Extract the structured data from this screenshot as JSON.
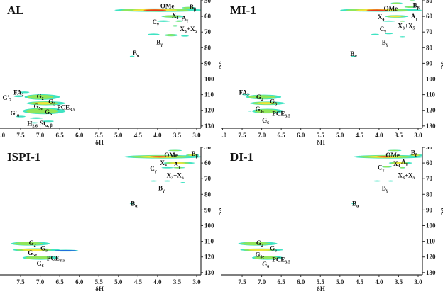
{
  "colors": {
    "level1": "#3fe3c2",
    "level2": "#90e65a",
    "level3": "#f1e43a",
    "level4": "#e43a1c",
    "negative": "#1d5fe0",
    "axis": "#333333"
  },
  "chart_data": [
    {
      "type": "heatmap",
      "title": "AL",
      "xlabel": "δH",
      "ylabel": "δC",
      "xlim": [
        8.0,
        3.0
      ],
      "ylim": [
        50,
        130
      ],
      "xticks": [
        "8.0",
        "7.5",
        "7.0",
        "6.5",
        "6.0",
        "5.5",
        "5.0",
        "4.5",
        "4.0",
        "3.5",
        "3.0"
      ],
      "yticks": [
        "50",
        "60",
        "70",
        "80",
        "90",
        "100",
        "110",
        "120",
        "130"
      ],
      "peaks": [
        {
          "h": 3.95,
          "c": 56,
          "w": 2.3,
          "hc": 2.2,
          "level": 4
        },
        {
          "h": 3.2,
          "c": 54.5,
          "w": 0.35,
          "hc": 1.2,
          "level": 2
        },
        {
          "h": 3.6,
          "c": 60,
          "w": 0.6,
          "hc": 1.6,
          "level": 2
        },
        {
          "h": 3.85,
          "c": 63,
          "w": 0.35,
          "hc": 1,
          "level": 1
        },
        {
          "h": 3.45,
          "c": 63,
          "w": 0.2,
          "hc": 1,
          "level": 2
        },
        {
          "h": 3.55,
          "c": 66,
          "w": 0.15,
          "hc": 1,
          "level": 2
        },
        {
          "h": 4.1,
          "c": 71.5,
          "w": 0.3,
          "hc": 1,
          "level": 1
        },
        {
          "h": 3.65,
          "c": 72,
          "w": 0.35,
          "hc": 1.5,
          "level": 2
        },
        {
          "h": 3.3,
          "c": 72.5,
          "w": 0.2,
          "hc": 0.8,
          "level": 1
        },
        {
          "h": 4.65,
          "c": 85.5,
          "w": 0.12,
          "hc": 0.8,
          "level": 1
        },
        {
          "h": 7.4,
          "c": 108.5,
          "w": 0.25,
          "hc": 1,
          "level": 1
        },
        {
          "h": 7.55,
          "c": 111,
          "w": 0.25,
          "hc": 1.2,
          "level": 1
        },
        {
          "h": 6.95,
          "c": 111.5,
          "w": 0.9,
          "hc": 3.5,
          "level": 2
        },
        {
          "h": 6.85,
          "c": 115.5,
          "w": 1.0,
          "hc": 2.5,
          "level": 3
        },
        {
          "h": 6.9,
          "c": 120.5,
          "w": 1.1,
          "hc": 4,
          "level": 2
        },
        {
          "h": 7.5,
          "c": 124,
          "w": 0.25,
          "hc": 1,
          "level": 1
        },
        {
          "h": 7.1,
          "c": 125,
          "w": 0.35,
          "hc": 1,
          "level": 1
        },
        {
          "h": 6.8,
          "c": 127,
          "w": 0.3,
          "hc": 1,
          "level": 1
        },
        {
          "h": 7.15,
          "c": 128,
          "w": 0.2,
          "hc": 0.8,
          "level": 1
        }
      ],
      "labels": [
        {
          "m": "OMe",
          "s": "",
          "h": 3.75,
          "c": 53.5
        },
        {
          "m": "B",
          "s": "β",
          "h": 3.1,
          "c": 54
        },
        {
          "m": "X",
          "s": "4",
          "h": 3.55,
          "c": 59.5
        },
        {
          "m": "A",
          "s": "γ",
          "h": 3.3,
          "c": 61
        },
        {
          "m": "C",
          "s": "γ",
          "h": 4.05,
          "c": 63.5
        },
        {
          "m": "X",
          "s": "3",
          "m2": "+X",
          "s2": "5",
          "h": 3.1,
          "c": 64.5
        },
        {
          "m": "B",
          "s": "γ",
          "h": 3.95,
          "c": 76.5
        },
        {
          "m": "B",
          "s": "α",
          "h": 4.55,
          "c": 83.5
        },
        {
          "m": "FA",
          "s": "2",
          "h": 7.55,
          "c": 108.5
        },
        {
          "m": "G'",
          "s": "2",
          "h": 7.85,
          "c": 112
        },
        {
          "m": "G",
          "s": "2",
          "h": 7.0,
          "c": 111
        },
        {
          "m": "G",
          "s": "5e",
          "h": 7.05,
          "c": 115.5
        },
        {
          "m": "G",
          "s": "5",
          "h": 6.7,
          "c": 114.5
        },
        {
          "m": "PCE",
          "s": "3,5",
          "h": 6.45,
          "c": 118
        },
        {
          "m": "G'",
          "s": "6",
          "h": 7.65,
          "c": 122
        },
        {
          "m": "G",
          "s": "6",
          "h": 6.9,
          "c": 121
        },
        {
          "m": "H",
          "s": "2,6",
          "h": 7.2,
          "c": 128.5
        },
        {
          "m": "St",
          "s": "α, β",
          "h": 6.85,
          "c": 126.5
        }
      ]
    },
    {
      "type": "heatmap",
      "title": "MI-1",
      "xlabel": "δH",
      "ylabel": "δC",
      "xlim": [
        8.0,
        3.0
      ],
      "ylim": [
        50,
        130
      ],
      "xticks": [
        "8.0",
        "7.5",
        "7.0",
        "6.5",
        "6.0",
        "5.5",
        "5.0",
        "4.5",
        "4.0",
        "3.5",
        "3.0"
      ],
      "yticks": [
        "50",
        "60",
        "70",
        "80",
        "90",
        "100",
        "110",
        "120",
        "130"
      ],
      "peaks": [
        {
          "h": 3.95,
          "c": 56,
          "w": 2.1,
          "hc": 2,
          "level": 4
        },
        {
          "h": 3.55,
          "c": 51.5,
          "w": 0.3,
          "hc": 0.8,
          "level": 2
        },
        {
          "h": 3.15,
          "c": 49.5,
          "w": 0.15,
          "hc": 0.8,
          "level": 2
        },
        {
          "h": 3.2,
          "c": 54,
          "w": 0.3,
          "hc": 1,
          "level": 2
        },
        {
          "h": 3.55,
          "c": 60,
          "w": 0.6,
          "hc": 1.6,
          "level": 3
        },
        {
          "h": 3.75,
          "c": 63,
          "w": 0.35,
          "hc": 0.8,
          "level": 1
        },
        {
          "h": 3.4,
          "c": 63,
          "w": 0.15,
          "hc": 0.8,
          "level": 3
        },
        {
          "h": 4.1,
          "c": 71.5,
          "w": 0.2,
          "hc": 0.8,
          "level": 1
        },
        {
          "h": 3.75,
          "c": 71,
          "w": 0.2,
          "hc": 0.8,
          "level": 1
        },
        {
          "h": 3.4,
          "c": 73,
          "w": 0.15,
          "hc": 0.6,
          "level": 1
        },
        {
          "h": 4.65,
          "c": 85.5,
          "w": 0.12,
          "hc": 0.8,
          "level": 1
        },
        {
          "h": 7.4,
          "c": 110,
          "w": 0.2,
          "hc": 0.8,
          "level": 1
        },
        {
          "h": 6.95,
          "c": 111.5,
          "w": 0.9,
          "hc": 3,
          "level": 2
        },
        {
          "h": 6.85,
          "c": 115.5,
          "w": 0.9,
          "hc": 2.2,
          "level": 3
        },
        {
          "h": 6.85,
          "c": 120.5,
          "w": 0.8,
          "hc": 3,
          "level": 2
        },
        {
          "h": 7.3,
          "c": 120.5,
          "w": 0.1,
          "hc": 0.6,
          "level": 1
        }
      ],
      "labels": [
        {
          "m": "OMe",
          "s": "",
          "h": 3.7,
          "c": 55
        },
        {
          "m": "B",
          "s": "β",
          "h": 3.05,
          "c": 53
        },
        {
          "m": "X",
          "s": "4",
          "h": 3.95,
          "c": 60.5
        },
        {
          "m": "A",
          "s": "γ",
          "h": 3.1,
          "c": 60
        },
        {
          "m": "C",
          "s": "γ",
          "h": 3.9,
          "c": 64.5
        },
        {
          "m": "X",
          "s": "3",
          "m2": "+X",
          "s2": "5",
          "h": 3.3,
          "c": 66
        },
        {
          "m": "B",
          "s": "γ",
          "h": 3.85,
          "c": 76.5
        },
        {
          "m": "B",
          "s": "α",
          "h": 4.65,
          "c": 84
        },
        {
          "m": "FA",
          "s": "2",
          "h": 7.45,
          "c": 108.5
        },
        {
          "m": "G",
          "s": "2",
          "h": 7.05,
          "c": 111.5
        },
        {
          "m": "G",
          "s": "5e",
          "h": 7.05,
          "c": 115.5
        },
        {
          "m": "G",
          "s": "5",
          "h": 6.7,
          "c": 114.5
        },
        {
          "m": "PCE",
          "s": "3,5",
          "h": 6.5,
          "c": 118.5
        },
        {
          "m": "G",
          "s": "6",
          "h": 6.9,
          "c": 121
        }
      ]
    },
    {
      "type": "heatmap",
      "title": "ISPI-1",
      "xlabel": "δH",
      "ylabel": "δC",
      "xlim": [
        8.0,
        3.0
      ],
      "ylim": [
        50,
        130
      ],
      "xticks": [
        "7.5",
        "7.0",
        "6.5",
        "6.0",
        "5.5",
        "5.0",
        "4.5",
        "4.0",
        "3.5",
        "3.0"
      ],
      "yticks": [
        "50",
        "60",
        "70",
        "80",
        "90",
        "100",
        "110",
        "120",
        "130"
      ],
      "peaks": [
        {
          "h": 3.85,
          "c": 56,
          "w": 2.0,
          "hc": 2.2,
          "level": 4
        },
        {
          "h": 3.55,
          "c": 52,
          "w": 0.35,
          "hc": 0.8,
          "level": 2
        },
        {
          "h": 3.1,
          "c": 55,
          "w": 0.35,
          "hc": 1.2,
          "level": 3
        },
        {
          "h": 3.45,
          "c": 60,
          "w": 0.8,
          "hc": 1.4,
          "level": 3
        },
        {
          "h": 3.75,
          "c": 63,
          "w": 0.3,
          "hc": 0.8,
          "level": 1
        },
        {
          "h": 3.45,
          "c": 63,
          "w": 0.3,
          "hc": 0.8,
          "level": 2
        },
        {
          "h": 4.1,
          "c": 71.5,
          "w": 0.2,
          "hc": 0.8,
          "level": 1
        },
        {
          "h": 3.75,
          "c": 71.5,
          "w": 0.2,
          "hc": 0.8,
          "level": 1
        },
        {
          "h": 3.35,
          "c": 72.5,
          "w": 0.12,
          "hc": 0.6,
          "level": 1
        },
        {
          "h": 4.65,
          "c": 86,
          "w": 0.12,
          "hc": 0.8,
          "level": 1
        },
        {
          "h": 7.25,
          "c": 111.5,
          "w": 1.0,
          "hc": 2.5,
          "level": 2
        },
        {
          "h": 7.1,
          "c": 115.5,
          "w": 1.2,
          "hc": 2,
          "level": 3
        },
        {
          "h": 6.35,
          "c": 116,
          "w": 0.65,
          "hc": 1.2,
          "level": -1
        },
        {
          "h": 7.0,
          "c": 120.5,
          "w": 0.9,
          "hc": 2.5,
          "level": 2
        }
      ],
      "labels": [
        {
          "m": "OMe",
          "s": "",
          "h": 3.65,
          "c": 55
        },
        {
          "m": "B",
          "s": "β",
          "h": 3.05,
          "c": 54
        },
        {
          "m": "X",
          "s": "4",
          "h": 3.85,
          "c": 60
        },
        {
          "m": "A",
          "s": "γ",
          "h": 3.5,
          "c": 59
        },
        {
          "m": "C",
          "s": "γ",
          "h": 4.0,
          "c": 63.5
        },
        {
          "m": "X",
          "s": "3",
          "m2": "+X",
          "s2": "5",
          "h": 3.55,
          "c": 66
        },
        {
          "m": "B",
          "s": "γ",
          "h": 3.9,
          "c": 76
        },
        {
          "m": "B",
          "s": "α",
          "h": 4.6,
          "c": 86
        },
        {
          "m": "G",
          "s": "2",
          "h": 7.2,
          "c": 111
        },
        {
          "m": "G",
          "s": "5e",
          "h": 7.2,
          "c": 115.5
        },
        {
          "m": "G",
          "s": "5",
          "h": 6.9,
          "c": 114.5
        },
        {
          "m": "PCE",
          "s": "3,5",
          "h": 6.6,
          "c": 119
        },
        {
          "m": "G",
          "s": "6",
          "h": 7.0,
          "c": 120.5
        }
      ]
    },
    {
      "type": "heatmap",
      "title": "DI-1",
      "xlabel": "δH",
      "ylabel": "δC",
      "xlim": [
        8.0,
        3.0
      ],
      "ylim": [
        50,
        130
      ],
      "xticks": [
        "7.5",
        "7.0",
        "6.5",
        "6.0",
        "5.5",
        "5.0",
        "4.5",
        "4.0",
        "3.5",
        "3.0"
      ],
      "yticks": [
        "50",
        "60",
        "70",
        "80",
        "90",
        "100",
        "110",
        "120",
        "130"
      ],
      "peaks": [
        {
          "h": 3.75,
          "c": 56,
          "w": 1.8,
          "hc": 2.2,
          "level": 4
        },
        {
          "h": 3.6,
          "c": 52,
          "w": 0.35,
          "hc": 0.8,
          "level": 2
        },
        {
          "h": 3.05,
          "c": 55,
          "w": 0.35,
          "hc": 1.2,
          "level": 3
        },
        {
          "h": 3.45,
          "c": 60,
          "w": 0.6,
          "hc": 1.4,
          "level": 3
        },
        {
          "h": 3.8,
          "c": 62.5,
          "w": 0.25,
          "hc": 0.8,
          "level": 2
        },
        {
          "h": 3.4,
          "c": 63,
          "w": 0.15,
          "hc": 0.8,
          "level": 2
        },
        {
          "h": 4.05,
          "c": 71.5,
          "w": 0.2,
          "hc": 0.8,
          "level": 1
        },
        {
          "h": 3.7,
          "c": 71.5,
          "w": 0.15,
          "hc": 0.8,
          "level": 1
        },
        {
          "h": 4.65,
          "c": 86,
          "w": 0.1,
          "hc": 0.8,
          "level": 1
        },
        {
          "h": 7.1,
          "c": 111.5,
          "w": 1.0,
          "hc": 2.5,
          "level": 2
        },
        {
          "h": 7.0,
          "c": 115.5,
          "w": 1.1,
          "hc": 1.8,
          "level": 3
        },
        {
          "h": 6.85,
          "c": 120.5,
          "w": 0.8,
          "hc": 2.5,
          "level": 2
        }
      ],
      "labels": [
        {
          "m": "OMe",
          "s": "",
          "h": 3.65,
          "c": 55
        },
        {
          "m": "B",
          "s": "β",
          "h": 3.1,
          "c": 53.5
        },
        {
          "m": "X",
          "s": "4",
          "h": 3.55,
          "c": 60.5
        },
        {
          "m": "A",
          "s": "γ",
          "h": 3.35,
          "c": 59
        },
        {
          "m": "C",
          "s": "γ",
          "h": 3.95,
          "c": 63
        },
        {
          "m": "X",
          "s": "3",
          "m2": "+X",
          "s2": "5",
          "h": 3.3,
          "c": 66
        },
        {
          "m": "B",
          "s": "γ",
          "h": 3.85,
          "c": 76
        },
        {
          "m": "B",
          "s": "α",
          "h": 4.6,
          "c": 86
        },
        {
          "m": "G",
          "s": "2",
          "h": 7.05,
          "c": 111
        },
        {
          "m": "G",
          "s": "5e",
          "h": 7.05,
          "c": 115
        },
        {
          "m": "G",
          "s": "5",
          "h": 6.7,
          "c": 114.5
        },
        {
          "m": "PCE",
          "s": "3,5",
          "h": 6.5,
          "c": 118
        },
        {
          "m": "G",
          "s": "6",
          "h": 6.9,
          "c": 121
        }
      ]
    }
  ]
}
